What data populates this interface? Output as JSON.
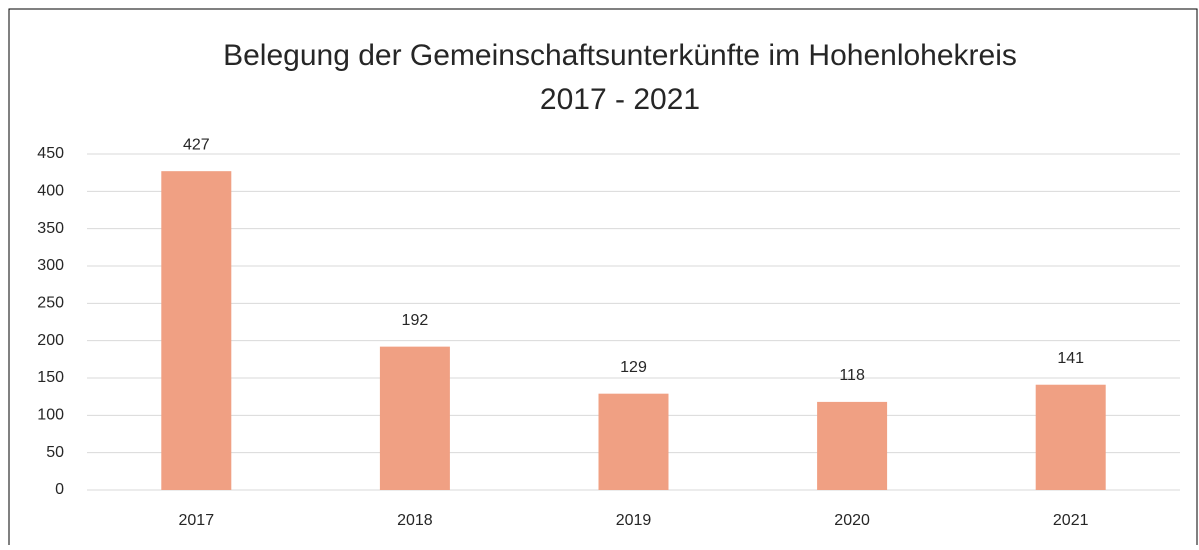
{
  "chart_data": {
    "type": "bar",
    "title": [
      "Belegung der Gemeinschaftsunterkünfte im Hohenlohekreis",
      "2017 - 2021"
    ],
    "categories": [
      "2017",
      "2018",
      "2019",
      "2020",
      "2021"
    ],
    "values": [
      427,
      192,
      129,
      118,
      141
    ],
    "color": "#f0a083",
    "ylim": [
      0,
      450
    ],
    "yticks": [
      0,
      50,
      100,
      150,
      200,
      250,
      300,
      350,
      400,
      450
    ],
    "grid": true
  }
}
